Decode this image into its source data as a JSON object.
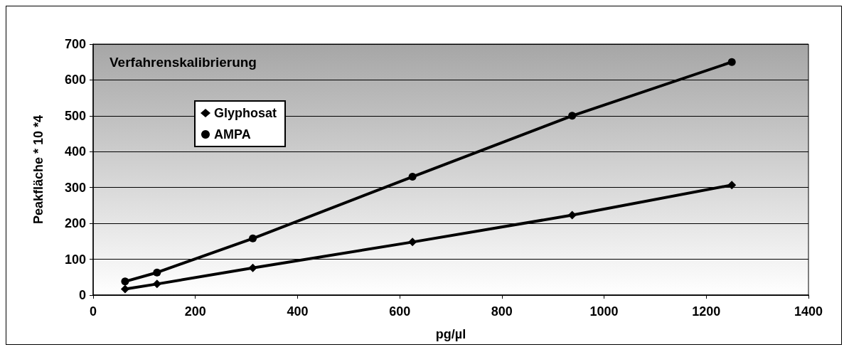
{
  "chart_data": {
    "type": "line",
    "title": "Verfahrenskalibrierung",
    "xlabel": "pg/µl",
    "ylabel": "Peakfläche * 10 *4",
    "x": [
      62.5,
      125,
      312.5,
      625,
      937.5,
      1250
    ],
    "series": [
      {
        "name": "Glyphosat",
        "color": "#000000",
        "marker": "diamond",
        "values": [
          17,
          31,
          76,
          148,
          223,
          307
        ]
      },
      {
        "name": "AMPA",
        "color": "#000000",
        "marker": "circle",
        "values": [
          38,
          63,
          158,
          330,
          500,
          650
        ]
      }
    ],
    "xlim": [
      0,
      1400
    ],
    "xticks": [
      0,
      200,
      400,
      600,
      800,
      1000,
      1200,
      1400
    ],
    "ylim": [
      0,
      700
    ],
    "yticks": [
      0,
      100,
      200,
      300,
      400,
      500,
      600,
      700
    ],
    "grid": "y",
    "legend": "top left",
    "line_style": "solid"
  }
}
